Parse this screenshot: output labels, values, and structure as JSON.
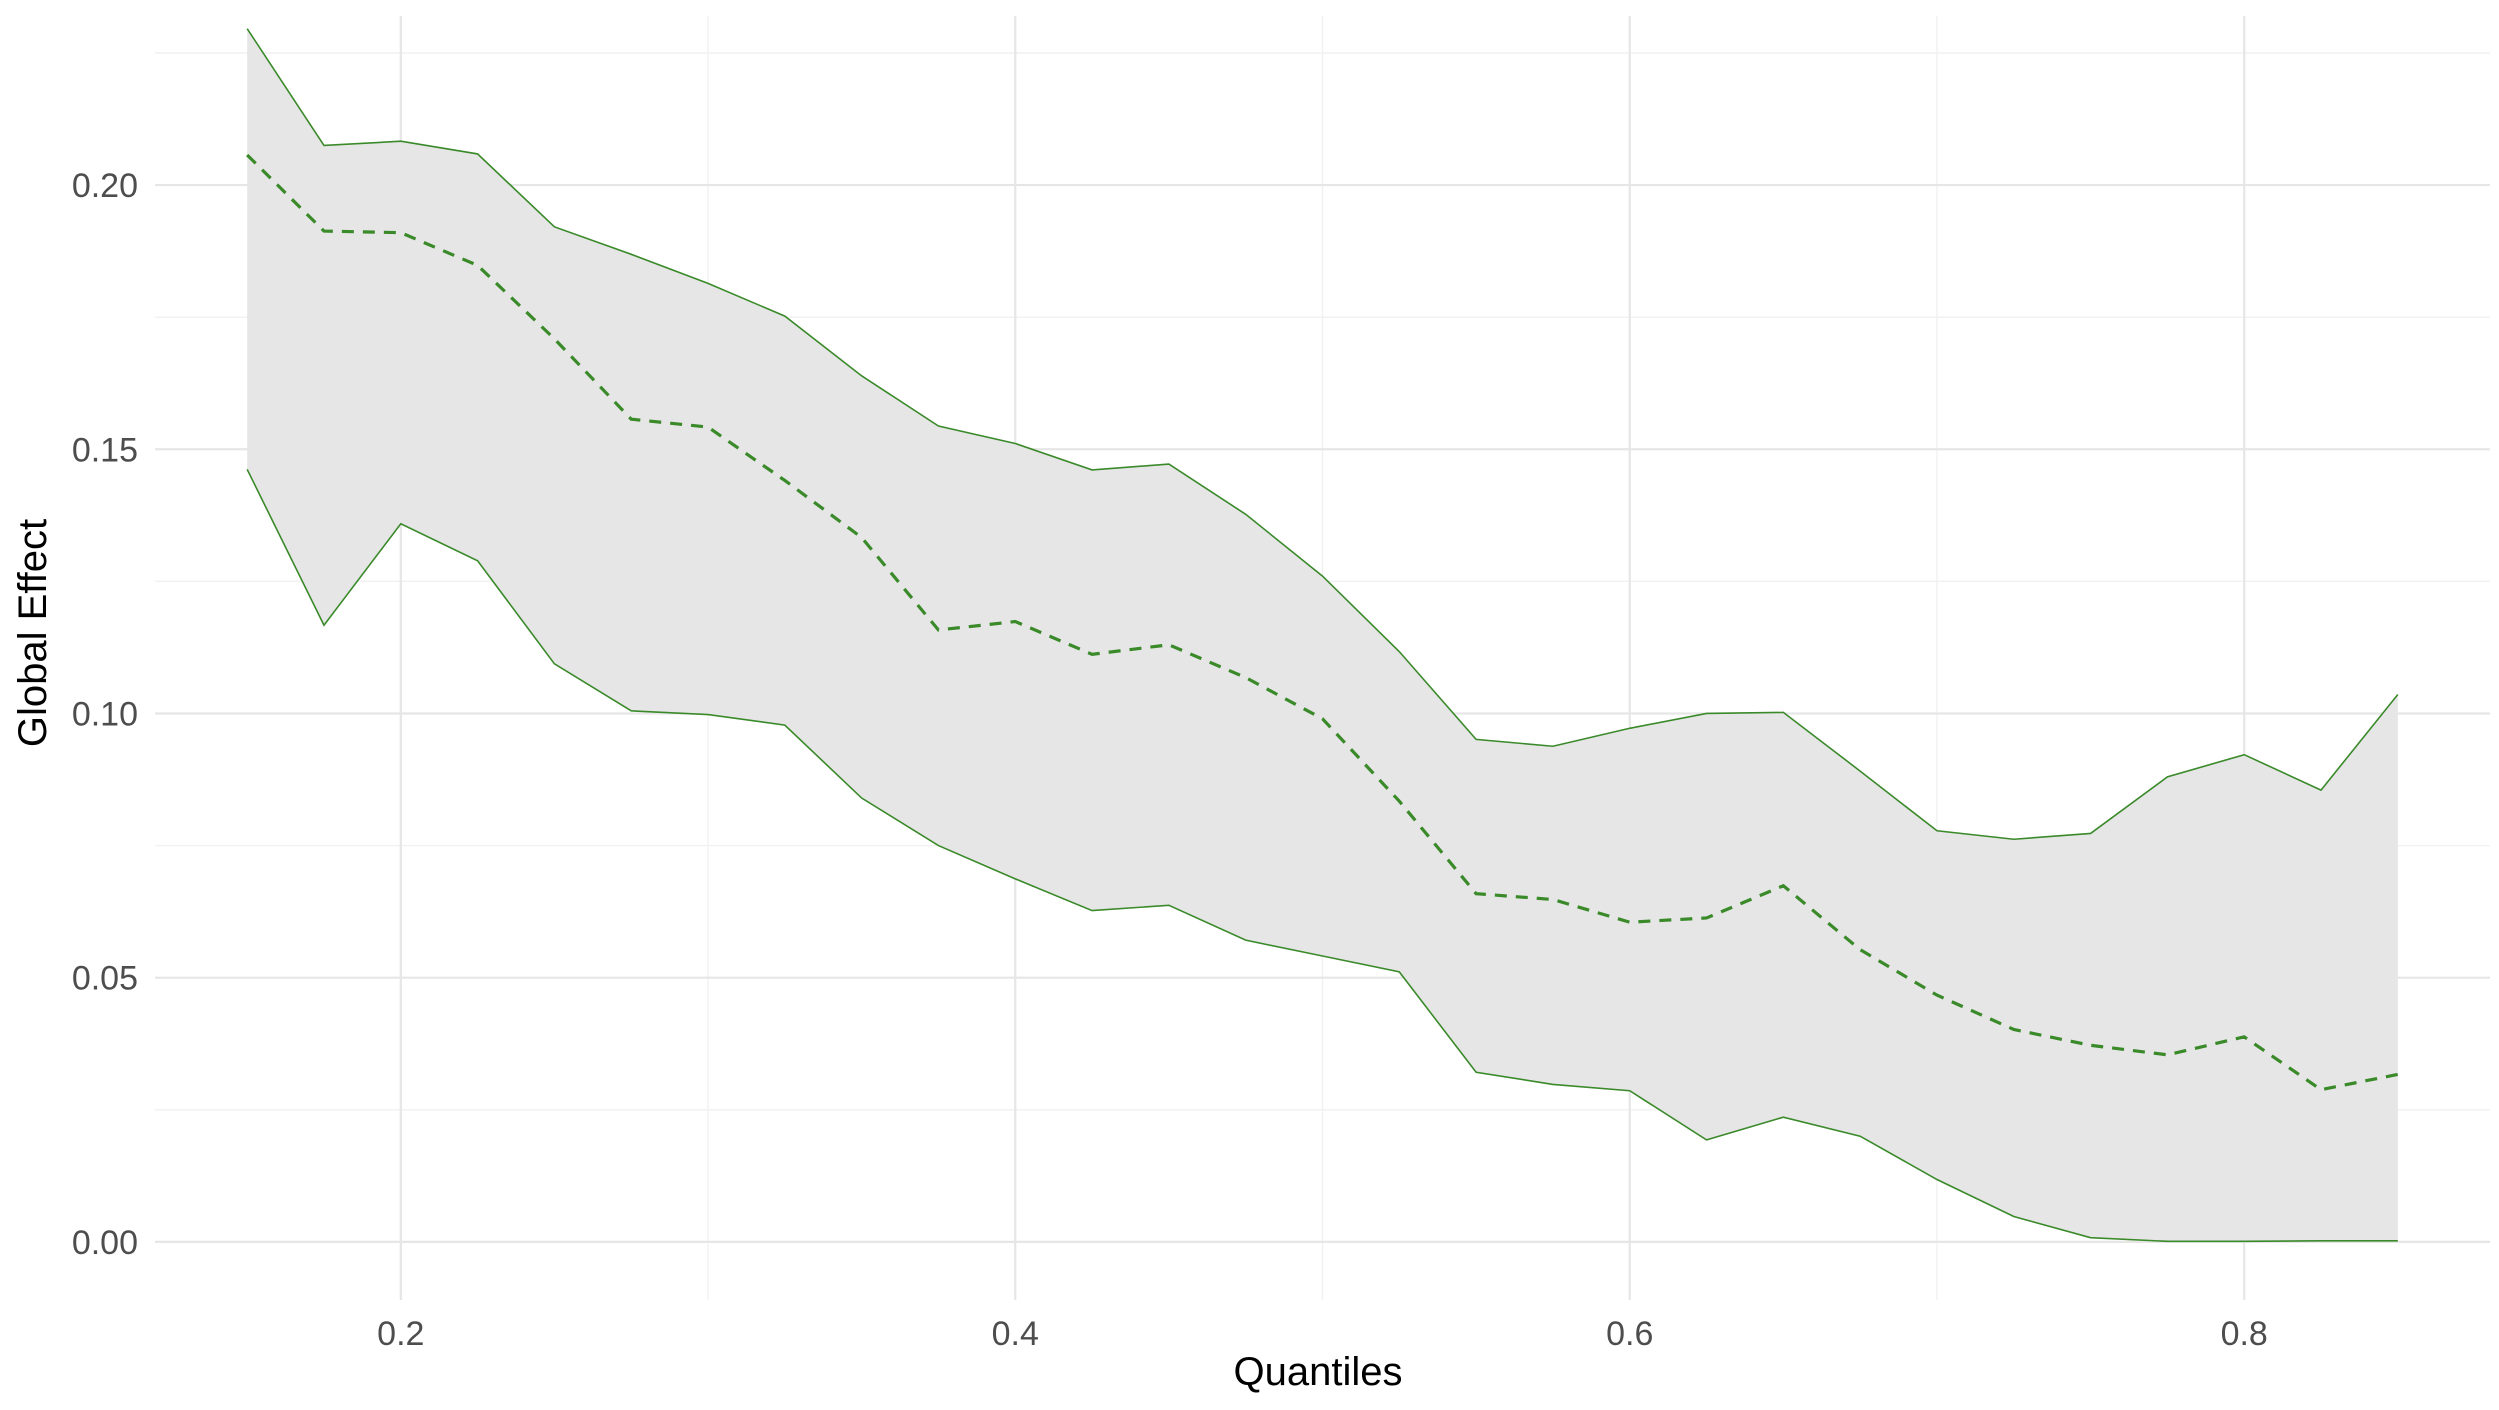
{
  "chart_data": {
    "type": "area",
    "xlabel": "Quantiles",
    "ylabel": "Global Effect",
    "xlim": [
      0.12,
      0.88
    ],
    "ylim": [
      -0.011,
      0.232
    ],
    "x_ticks": [
      0.2,
      0.4,
      0.6,
      0.8
    ],
    "x_tick_labels": [
      "0.2",
      "0.4",
      "0.6",
      "0.8"
    ],
    "y_ticks": [
      0.0,
      0.05,
      0.1,
      0.15,
      0.2
    ],
    "y_tick_labels": [
      "0.00",
      "0.05",
      "0.10",
      "0.15",
      "0.20"
    ],
    "grid": true,
    "legend": "none",
    "colors": {
      "line": "#3a8a2a",
      "ribbon": "#e6e6e6",
      "grid": "#e6e6e6"
    },
    "x": [
      0.15,
      0.175,
      0.2,
      0.225,
      0.25,
      0.275,
      0.3,
      0.325,
      0.35,
      0.375,
      0.4,
      0.425,
      0.45,
      0.475,
      0.5,
      0.525,
      0.55,
      0.575,
      0.6,
      0.625,
      0.65,
      0.675,
      0.7,
      0.725,
      0.75,
      0.775,
      0.8,
      0.825,
      0.85
    ],
    "series": [
      {
        "role": "upper",
        "style": "solid",
        "values": [
          0.2296,
          0.2075,
          0.2083,
          0.2059,
          0.1921,
          0.1869,
          0.1814,
          0.1752,
          0.1639,
          0.1544,
          0.1511,
          0.1461,
          0.1472,
          0.1377,
          0.126,
          0.1117,
          0.0951,
          0.0938,
          0.0972,
          0.1,
          0.1002,
          0.0891,
          0.0778,
          0.0762,
          0.0773,
          0.088,
          0.0922,
          0.0855,
          0.1036
        ]
      },
      {
        "role": "center",
        "style": "dashed",
        "values": [
          0.2057,
          0.1913,
          0.191,
          0.1848,
          0.1709,
          0.1557,
          0.1542,
          0.1441,
          0.1333,
          0.1158,
          0.1174,
          0.1112,
          0.113,
          0.1068,
          0.099,
          0.0834,
          0.0659,
          0.0648,
          0.0605,
          0.0613,
          0.0674,
          0.0553,
          0.0467,
          0.0402,
          0.0372,
          0.0354,
          0.0388,
          0.0288,
          0.0317
        ]
      },
      {
        "role": "lower",
        "style": "solid",
        "values": [
          0.1462,
          0.1167,
          0.1359,
          0.1289,
          0.1094,
          0.1005,
          0.0998,
          0.0978,
          0.084,
          0.075,
          0.0687,
          0.0627,
          0.0637,
          0.0571,
          0.0541,
          0.0511,
          0.0321,
          0.0298,
          0.0286,
          0.0193,
          0.0236,
          0.02,
          0.0118,
          0.0048,
          0.0008,
          0.0001,
          0.0001,
          0.0002,
          0.0002
        ]
      }
    ]
  }
}
